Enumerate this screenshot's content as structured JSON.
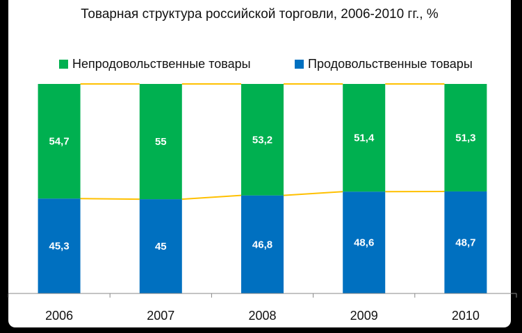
{
  "chart_data": {
    "type": "bar",
    "stacked": true,
    "percent_stacked": true,
    "title": "Товарная структура российской торговли, 2006-2010 гг., %",
    "categories": [
      "2006",
      "2007",
      "2008",
      "2009",
      "2010"
    ],
    "series": [
      {
        "name": "Продовольственные товары",
        "color": "#0070c0",
        "values": [
          45.3,
          45,
          46.8,
          48.6,
          48.7
        ],
        "labels": [
          "45,3",
          "45",
          "46,8",
          "48,6",
          "48,7"
        ]
      },
      {
        "name": "Непродовольственные товары",
        "color": "#00b050",
        "values": [
          54.7,
          55,
          53.2,
          51.4,
          51.3
        ],
        "labels": [
          "54,7",
          "55",
          "53,2",
          "51,4",
          "51,3"
        ]
      }
    ],
    "series_lines_color": "#ffc000",
    "ylim": [
      0,
      100
    ],
    "legend_position": "top",
    "grid": false
  }
}
